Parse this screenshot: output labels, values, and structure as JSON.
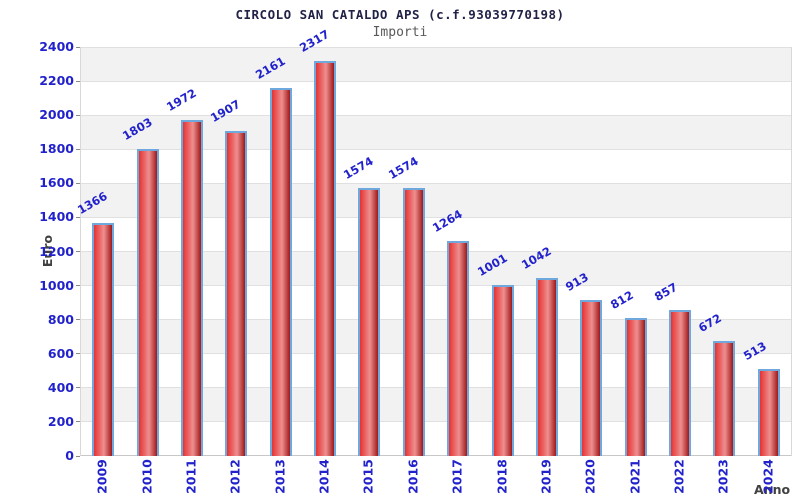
{
  "header": {
    "title": "CIRCOLO SAN CATALDO APS (c.f.93039770198)",
    "subtitle": "Importi"
  },
  "chart_data": {
    "type": "bar",
    "title": "CIRCOLO SAN CATALDO APS (c.f.93039770198)",
    "subtitle": "Importi",
    "xlabel": "Anno",
    "ylabel": "Euro",
    "categories": [
      "2009",
      "2010",
      "2011",
      "2012",
      "2013",
      "2014",
      "2015",
      "2016",
      "2017",
      "2018",
      "2019",
      "2020",
      "2021",
      "2022",
      "2023",
      "2024"
    ],
    "values": [
      1366,
      1803,
      1972,
      1907,
      2161,
      2317,
      1574,
      1574,
      1264,
      1001,
      1042,
      913,
      812,
      857,
      672,
      513
    ],
    "ylim": [
      0,
      2400
    ],
    "ytick_step": 200,
    "grid": true,
    "bands_alternating": true,
    "legend": "none",
    "value_labels_rotated_deg": -30,
    "xtick_labels_rotated_deg": -90,
    "colors": {
      "tick_label": "#2222cc",
      "value_label": "#2222cc",
      "title": "#222248",
      "subtitle": "#5a5a5a",
      "axis_title": "#404040",
      "bar_fill_left": "#e63232",
      "bar_fill_mid": "#ee8f8f",
      "bar_fill_right": "#a01818",
      "bar_border": "#6fa8dc",
      "band_gray": "#f2f2f2",
      "band_white": "#ffffff",
      "gridline": "#e0e0e0"
    }
  }
}
